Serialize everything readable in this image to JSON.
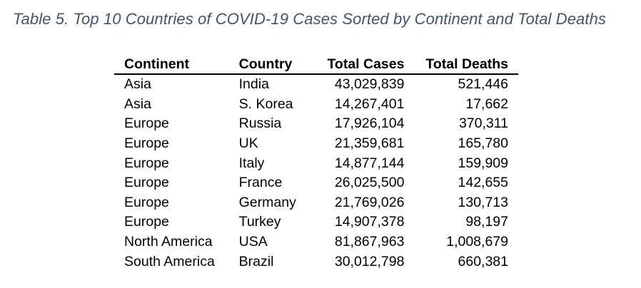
{
  "caption": "Table 5. Top 10 Countries of COVID-19 Cases Sorted by Continent and Total Deaths",
  "table": {
    "headers": {
      "continent": "Continent",
      "country": "Country",
      "total_cases": "Total Cases",
      "total_deaths": "Total Deaths"
    },
    "rows": [
      {
        "continent": "Asia",
        "country": "India",
        "total_cases": "43,029,839",
        "total_deaths": "521,446"
      },
      {
        "continent": "Asia",
        "country": "S. Korea",
        "total_cases": "14,267,401",
        "total_deaths": "17,662"
      },
      {
        "continent": "Europe",
        "country": "Russia",
        "total_cases": "17,926,104",
        "total_deaths": "370,311"
      },
      {
        "continent": "Europe",
        "country": "UK",
        "total_cases": "21,359,681",
        "total_deaths": "165,780"
      },
      {
        "continent": "Europe",
        "country": "Italy",
        "total_cases": "14,877,144",
        "total_deaths": "159,909"
      },
      {
        "continent": "Europe",
        "country": "France",
        "total_cases": "26,025,500",
        "total_deaths": "142,655"
      },
      {
        "continent": "Europe",
        "country": "Germany",
        "total_cases": "21,769,026",
        "total_deaths": "130,713"
      },
      {
        "continent": "Europe",
        "country": "Turkey",
        "total_cases": "14,907,378",
        "total_deaths": "98,197"
      },
      {
        "continent": "North America",
        "country": "USA",
        "total_cases": "81,867,963",
        "total_deaths": "1,008,679"
      },
      {
        "continent": "South America",
        "country": "Brazil",
        "total_cases": "30,012,798",
        "total_deaths": "660,381"
      }
    ]
  },
  "colors": {
    "caption": "#44546a",
    "text": "#000000",
    "rule": "#000000"
  }
}
